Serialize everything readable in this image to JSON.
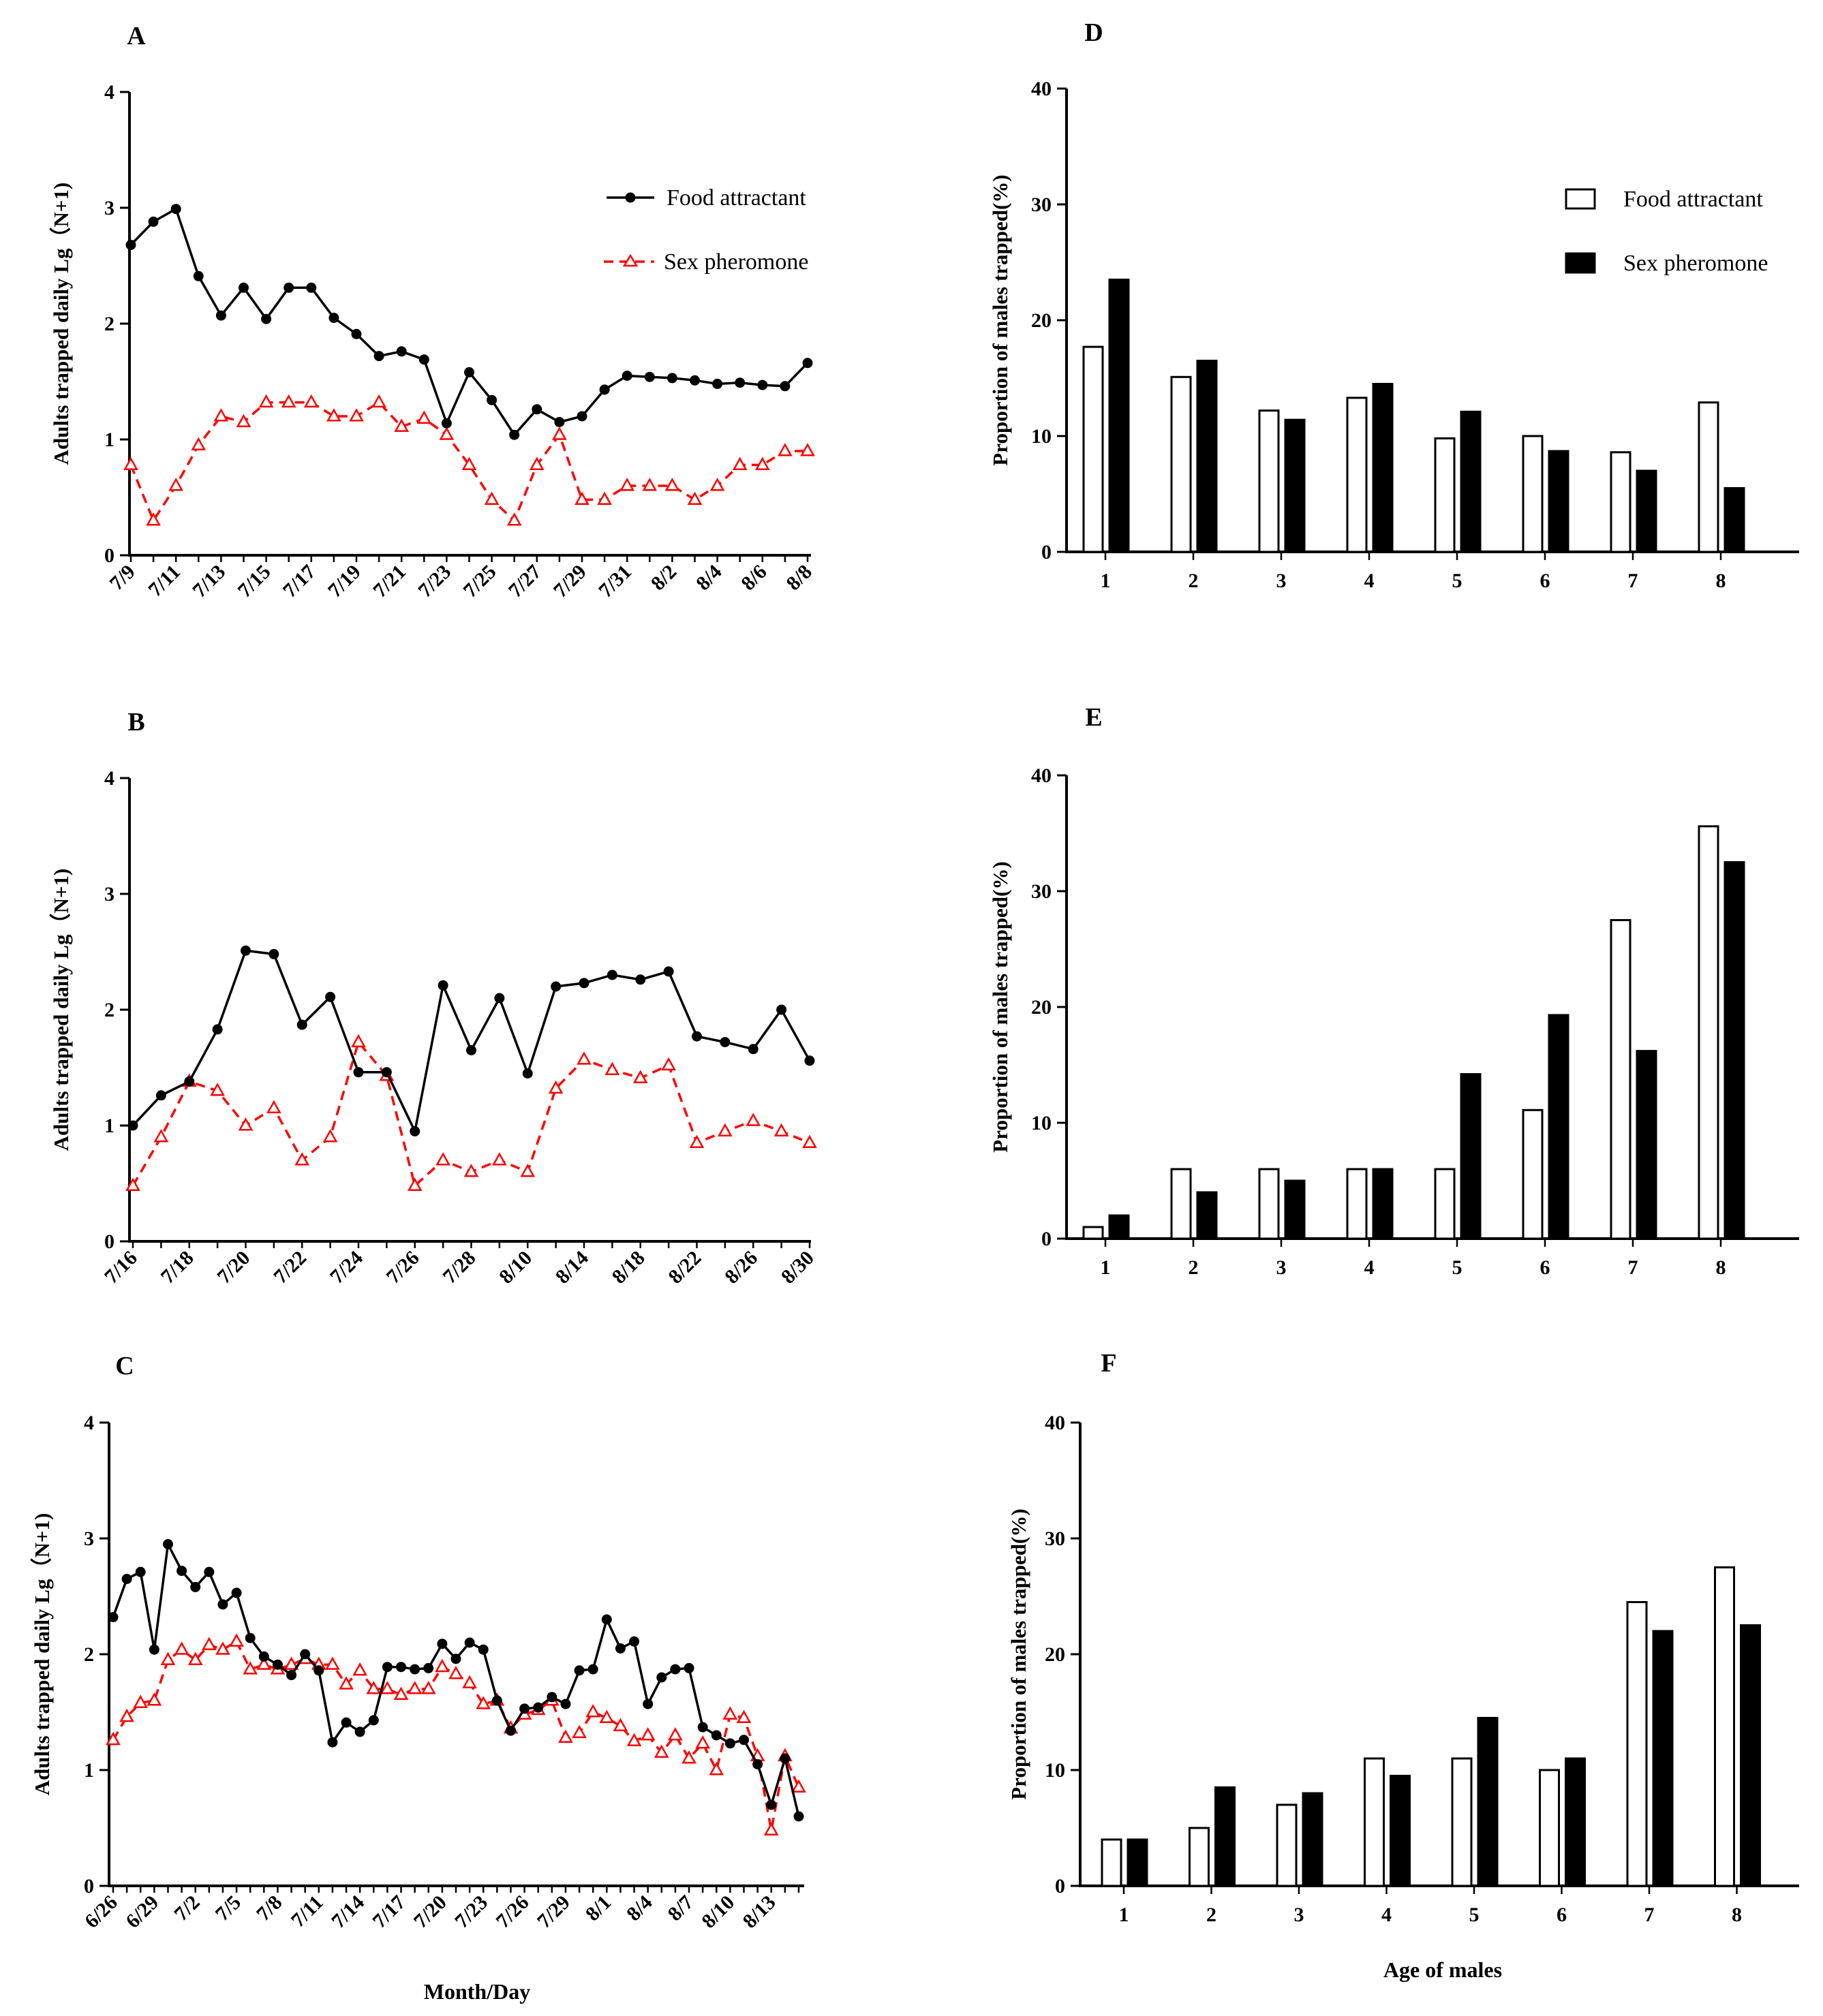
{
  "chart_data": [
    {
      "panel": "A",
      "type": "line",
      "ylabel": "Adults trapped daily Lg（N+1)",
      "xlabel": "",
      "ylim": [
        0,
        4
      ],
      "yticks": [
        0,
        1,
        2,
        3,
        4
      ],
      "xticks": [
        "7/9",
        "7/11",
        "7/13",
        "7/15",
        "7/17",
        "7/19",
        "7/21",
        "7/23",
        "7/25",
        "7/27",
        "7/29",
        "7/31",
        "8/2",
        "8/4",
        "8/6",
        "8/8"
      ],
      "legend": "top-right",
      "series": [
        {
          "name": "Food attractant",
          "color": "#000000",
          "marker": "circle",
          "style": "solid",
          "values": [
            2.68,
            2.88,
            2.99,
            2.41,
            2.07,
            2.31,
            2.04,
            2.31,
            2.31,
            2.05,
            1.91,
            1.72,
            1.76,
            1.69,
            1.14,
            1.58,
            1.34,
            1.04,
            1.26,
            1.15,
            1.2,
            1.43,
            1.55,
            1.54,
            1.53,
            1.51,
            1.48,
            1.49,
            1.47,
            1.46,
            1.66
          ]
        },
        {
          "name": "Sex pheromone",
          "color": "#ff0000",
          "marker": "triangle",
          "style": "dashed",
          "values": [
            0.78,
            0.3,
            0.6,
            0.95,
            1.2,
            1.15,
            1.32,
            1.32,
            1.32,
            1.2,
            1.2,
            1.32,
            1.11,
            1.18,
            1.04,
            0.78,
            0.48,
            0.3,
            0.78,
            1.04,
            0.48,
            0.48,
            0.6,
            0.6,
            0.6,
            0.48,
            0.6,
            0.78,
            0.78,
            0.9,
            0.9
          ]
        }
      ]
    },
    {
      "panel": "B",
      "type": "line",
      "ylabel": "Adults trapped daily Lg（N+1)",
      "xlabel": "",
      "ylim": [
        0,
        4
      ],
      "yticks": [
        0,
        1,
        2,
        3,
        4
      ],
      "xticks": [
        "7/16",
        "7/18",
        "7/20",
        "7/22",
        "7/24",
        "7/26",
        "7/28",
        "8/10",
        "8/14",
        "8/18",
        "8/22",
        "8/26",
        "8/30"
      ],
      "series": [
        {
          "name": "Food attractant",
          "color": "#000000",
          "marker": "circle",
          "style": "solid",
          "values": [
            1.0,
            1.26,
            1.38,
            1.83,
            2.51,
            2.48,
            1.87,
            2.11,
            1.46,
            1.46,
            0.95,
            2.21,
            1.65,
            2.1,
            1.45,
            2.2,
            2.23,
            2.3,
            2.26,
            2.33,
            1.77,
            1.72,
            1.66,
            2.0,
            1.56
          ]
        },
        {
          "name": "Sex pheromone",
          "color": "#ff0000",
          "marker": "triangle",
          "style": "dashed",
          "values": [
            0.48,
            0.9,
            1.38,
            1.3,
            1.0,
            1.15,
            0.7,
            0.9,
            1.72,
            1.43,
            0.48,
            0.7,
            0.6,
            0.7,
            0.6,
            1.32,
            1.57,
            1.48,
            1.41,
            1.52,
            0.85,
            0.95,
            1.04,
            0.95,
            0.85
          ]
        }
      ]
    },
    {
      "panel": "C",
      "type": "line",
      "ylabel": "Adults trapped daily Lg（N+1)",
      "xlabel": "Month/Day",
      "ylim": [
        0,
        4
      ],
      "yticks": [
        0,
        1,
        2,
        3,
        4
      ],
      "xticks": [
        "6/26",
        "6/29",
        "7/2",
        "7/5",
        "7/8",
        "7/11",
        "7/14",
        "7/17",
        "7/20",
        "7/23",
        "7/26",
        "7/29",
        "8/1",
        "8/4",
        "8/7",
        "8/10",
        "8/13"
      ],
      "series": [
        {
          "name": "Food attractant",
          "color": "#000000",
          "marker": "circle",
          "style": "solid",
          "values": [
            2.32,
            2.65,
            2.71,
            2.04,
            2.95,
            2.72,
            2.58,
            2.71,
            2.43,
            2.53,
            2.14,
            1.98,
            1.91,
            1.82,
            2.0,
            1.86,
            1.24,
            1.41,
            1.33,
            1.43,
            1.89,
            1.89,
            1.87,
            1.88,
            2.09,
            1.96,
            2.1,
            2.04,
            1.6,
            1.34,
            1.53,
            1.54,
            1.63,
            1.57,
            1.86,
            1.87,
            2.3,
            2.05,
            2.11,
            1.57,
            1.8,
            1.87,
            1.88,
            1.37,
            1.3,
            1.23,
            1.26,
            1.05,
            0.7,
            1.1,
            0.6
          ]
        },
        {
          "name": "Sex pheromone",
          "color": "#ff0000",
          "marker": "triangle",
          "style": "dashed",
          "values": [
            1.26,
            1.46,
            1.58,
            1.6,
            1.95,
            2.04,
            1.95,
            2.08,
            2.04,
            2.11,
            1.87,
            1.91,
            1.87,
            1.91,
            1.96,
            1.91,
            1.91,
            1.74,
            1.86,
            1.7,
            1.7,
            1.65,
            1.7,
            1.7,
            1.89,
            1.83,
            1.75,
            1.57,
            1.6,
            1.36,
            1.48,
            1.52,
            1.6,
            1.28,
            1.32,
            1.5,
            1.45,
            1.38,
            1.25,
            1.3,
            1.15,
            1.3,
            1.1,
            1.23,
            1.0,
            1.48,
            1.45,
            1.12,
            0.48,
            1.12,
            0.85
          ]
        }
      ]
    },
    {
      "panel": "D",
      "type": "bar",
      "ylabel": "Proportion of males trapped(%)",
      "xlabel": "",
      "ylim": [
        0,
        40
      ],
      "yticks": [
        0,
        10,
        20,
        30,
        40
      ],
      "categories": [
        "1",
        "2",
        "3",
        "4",
        "5",
        "6",
        "7",
        "8"
      ],
      "legend": "top-right",
      "series": [
        {
          "name": "Food attractant",
          "fill": "#ffffff",
          "values": [
            17.7,
            15.1,
            12.2,
            13.3,
            9.8,
            10.0,
            8.6,
            12.9
          ]
        },
        {
          "name": "Sex pheromone",
          "fill": "#000000",
          "values": [
            23.5,
            16.5,
            11.4,
            14.5,
            12.1,
            8.7,
            7.0,
            5.5
          ]
        }
      ]
    },
    {
      "panel": "E",
      "type": "bar",
      "ylabel": "Proportion of males trapped(%)",
      "xlabel": "",
      "ylim": [
        0,
        40
      ],
      "yticks": [
        0,
        10,
        20,
        30,
        40
      ],
      "categories": [
        "1",
        "2",
        "3",
        "4",
        "5",
        "6",
        "7",
        "8"
      ],
      "series": [
        {
          "name": "Food attractant",
          "fill": "#ffffff",
          "values": [
            1.0,
            6.0,
            6.0,
            6.0,
            6.0,
            11.1,
            27.5,
            35.6
          ]
        },
        {
          "name": "Sex pheromone",
          "fill": "#000000",
          "values": [
            2.0,
            4.0,
            5.0,
            6.0,
            14.2,
            19.3,
            16.2,
            32.5
          ]
        }
      ]
    },
    {
      "panel": "F",
      "type": "bar",
      "ylabel": "Proportion of males trapped(%)",
      "xlabel": "Age of males",
      "ylim": [
        0,
        40
      ],
      "yticks": [
        0,
        10,
        20,
        30,
        40
      ],
      "categories": [
        "1",
        "2",
        "3",
        "4",
        "5",
        "6",
        "7",
        "8"
      ],
      "series": [
        {
          "name": "Food attractant",
          "fill": "#ffffff",
          "values": [
            4.0,
            5.0,
            7.0,
            11.0,
            11.0,
            10.0,
            24.5,
            27.5
          ]
        },
        {
          "name": "Sex pheromone",
          "fill": "#000000",
          "values": [
            4.0,
            8.5,
            8.0,
            9.5,
            14.5,
            11.0,
            22.0,
            22.5
          ]
        }
      ]
    }
  ]
}
